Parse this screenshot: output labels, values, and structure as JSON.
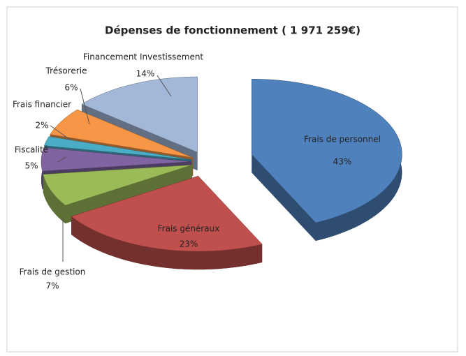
{
  "chart_data": {
    "type": "pie",
    "title": "Dépenses de fonctionnement ( 1 971 259€)",
    "categories": [
      "Frais de personnel",
      "Frais généraux",
      "Frais de gestion",
      "Fiscalité",
      "Frais financier",
      "Trésorerie",
      "Financement Investissement"
    ],
    "values": [
      43,
      23,
      7,
      5,
      2,
      6,
      14
    ],
    "value_labels": [
      "43%",
      "23%",
      "7%",
      "5%",
      "2%",
      "6%",
      "14%"
    ],
    "colors": [
      "#4f81bd",
      "#c0504d",
      "#9bbb59",
      "#8064a2",
      "#4bacc6",
      "#f79646",
      "#a3b8d8"
    ]
  }
}
